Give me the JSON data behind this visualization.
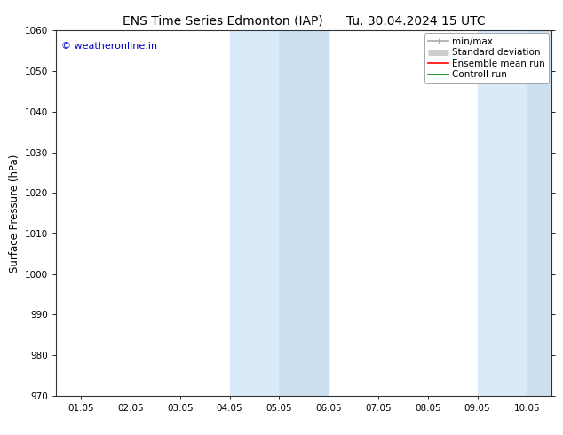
{
  "title": "ENS Time Series Edmonton (IAP)      Tu. 30.04.2024 15 UTC",
  "ylabel": "Surface Pressure (hPa)",
  "ylim": [
    970,
    1060
  ],
  "yticks": [
    970,
    980,
    990,
    1000,
    1010,
    1020,
    1030,
    1040,
    1050,
    1060
  ],
  "xtick_labels": [
    "01.05",
    "02.05",
    "03.05",
    "04.05",
    "05.05",
    "06.05",
    "07.05",
    "08.05",
    "09.05",
    "10.05"
  ],
  "num_ticks": 10,
  "xlim": [
    0,
    9
  ],
  "shaded_regions": [
    {
      "xmin": 3.0,
      "xmax": 4.0,
      "color": "#daeaf8"
    },
    {
      "xmin": 4.0,
      "xmax": 5.0,
      "color": "#cce0f0"
    },
    {
      "xmin": 8.0,
      "xmax": 9.0,
      "color": "#daeaf8"
    },
    {
      "xmin": 9.0,
      "xmax": 9.5,
      "color": "#cce0f0"
    }
  ],
  "watermark_text": "© weatheronline.in",
  "watermark_color": "#0000cc",
  "watermark_fontsize": 8,
  "background_color": "#ffffff",
  "legend_items": [
    {
      "label": "min/max",
      "color": "#aaaaaa",
      "lw": 1.2
    },
    {
      "label": "Standard deviation",
      "color": "#cccccc",
      "lw": 5
    },
    {
      "label": "Ensemble mean run",
      "color": "#ff0000",
      "lw": 1.2
    },
    {
      "label": "Controll run",
      "color": "#008000",
      "lw": 1.2
    }
  ],
  "title_fontsize": 10,
  "tick_fontsize": 7.5,
  "ylabel_fontsize": 8.5,
  "legend_fontsize": 7.5
}
